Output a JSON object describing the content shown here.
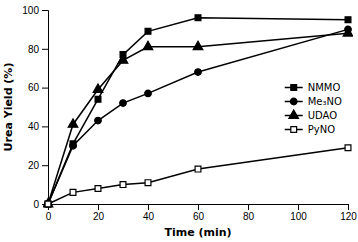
{
  "chart_data": {
    "type": "line",
    "xlabel": "Time (min)",
    "ylabel": "Urea Yield (%)",
    "x": [
      0,
      10,
      20,
      30,
      40,
      60,
      120
    ],
    "series": [
      {
        "name": "NMMO",
        "color": "black",
        "marker": "square",
        "values": [
          0,
          31,
          54,
          77,
          89,
          96,
          95
        ]
      },
      {
        "name": "Me₃NO",
        "color": "black",
        "marker": "circle",
        "values": [
          0,
          30,
          43,
          52,
          57,
          68,
          90
        ]
      },
      {
        "name": "UDAO",
        "color": "black",
        "marker": "triangle",
        "values": [
          0,
          41,
          59,
          74,
          81,
          81,
          88
        ]
      },
      {
        "name": "PyNO",
        "color": "black",
        "marker": "square-open",
        "values": [
          0,
          6,
          8,
          10,
          11,
          18,
          29
        ]
      }
    ],
    "xlim": [
      0,
      120
    ],
    "ylim": [
      0,
      100
    ],
    "xticks": [
      0,
      20,
      40,
      60,
      80,
      100,
      120
    ],
    "yticks": [
      0,
      20,
      40,
      60,
      80,
      100
    ],
    "grid": false,
    "legend": "center right"
  }
}
